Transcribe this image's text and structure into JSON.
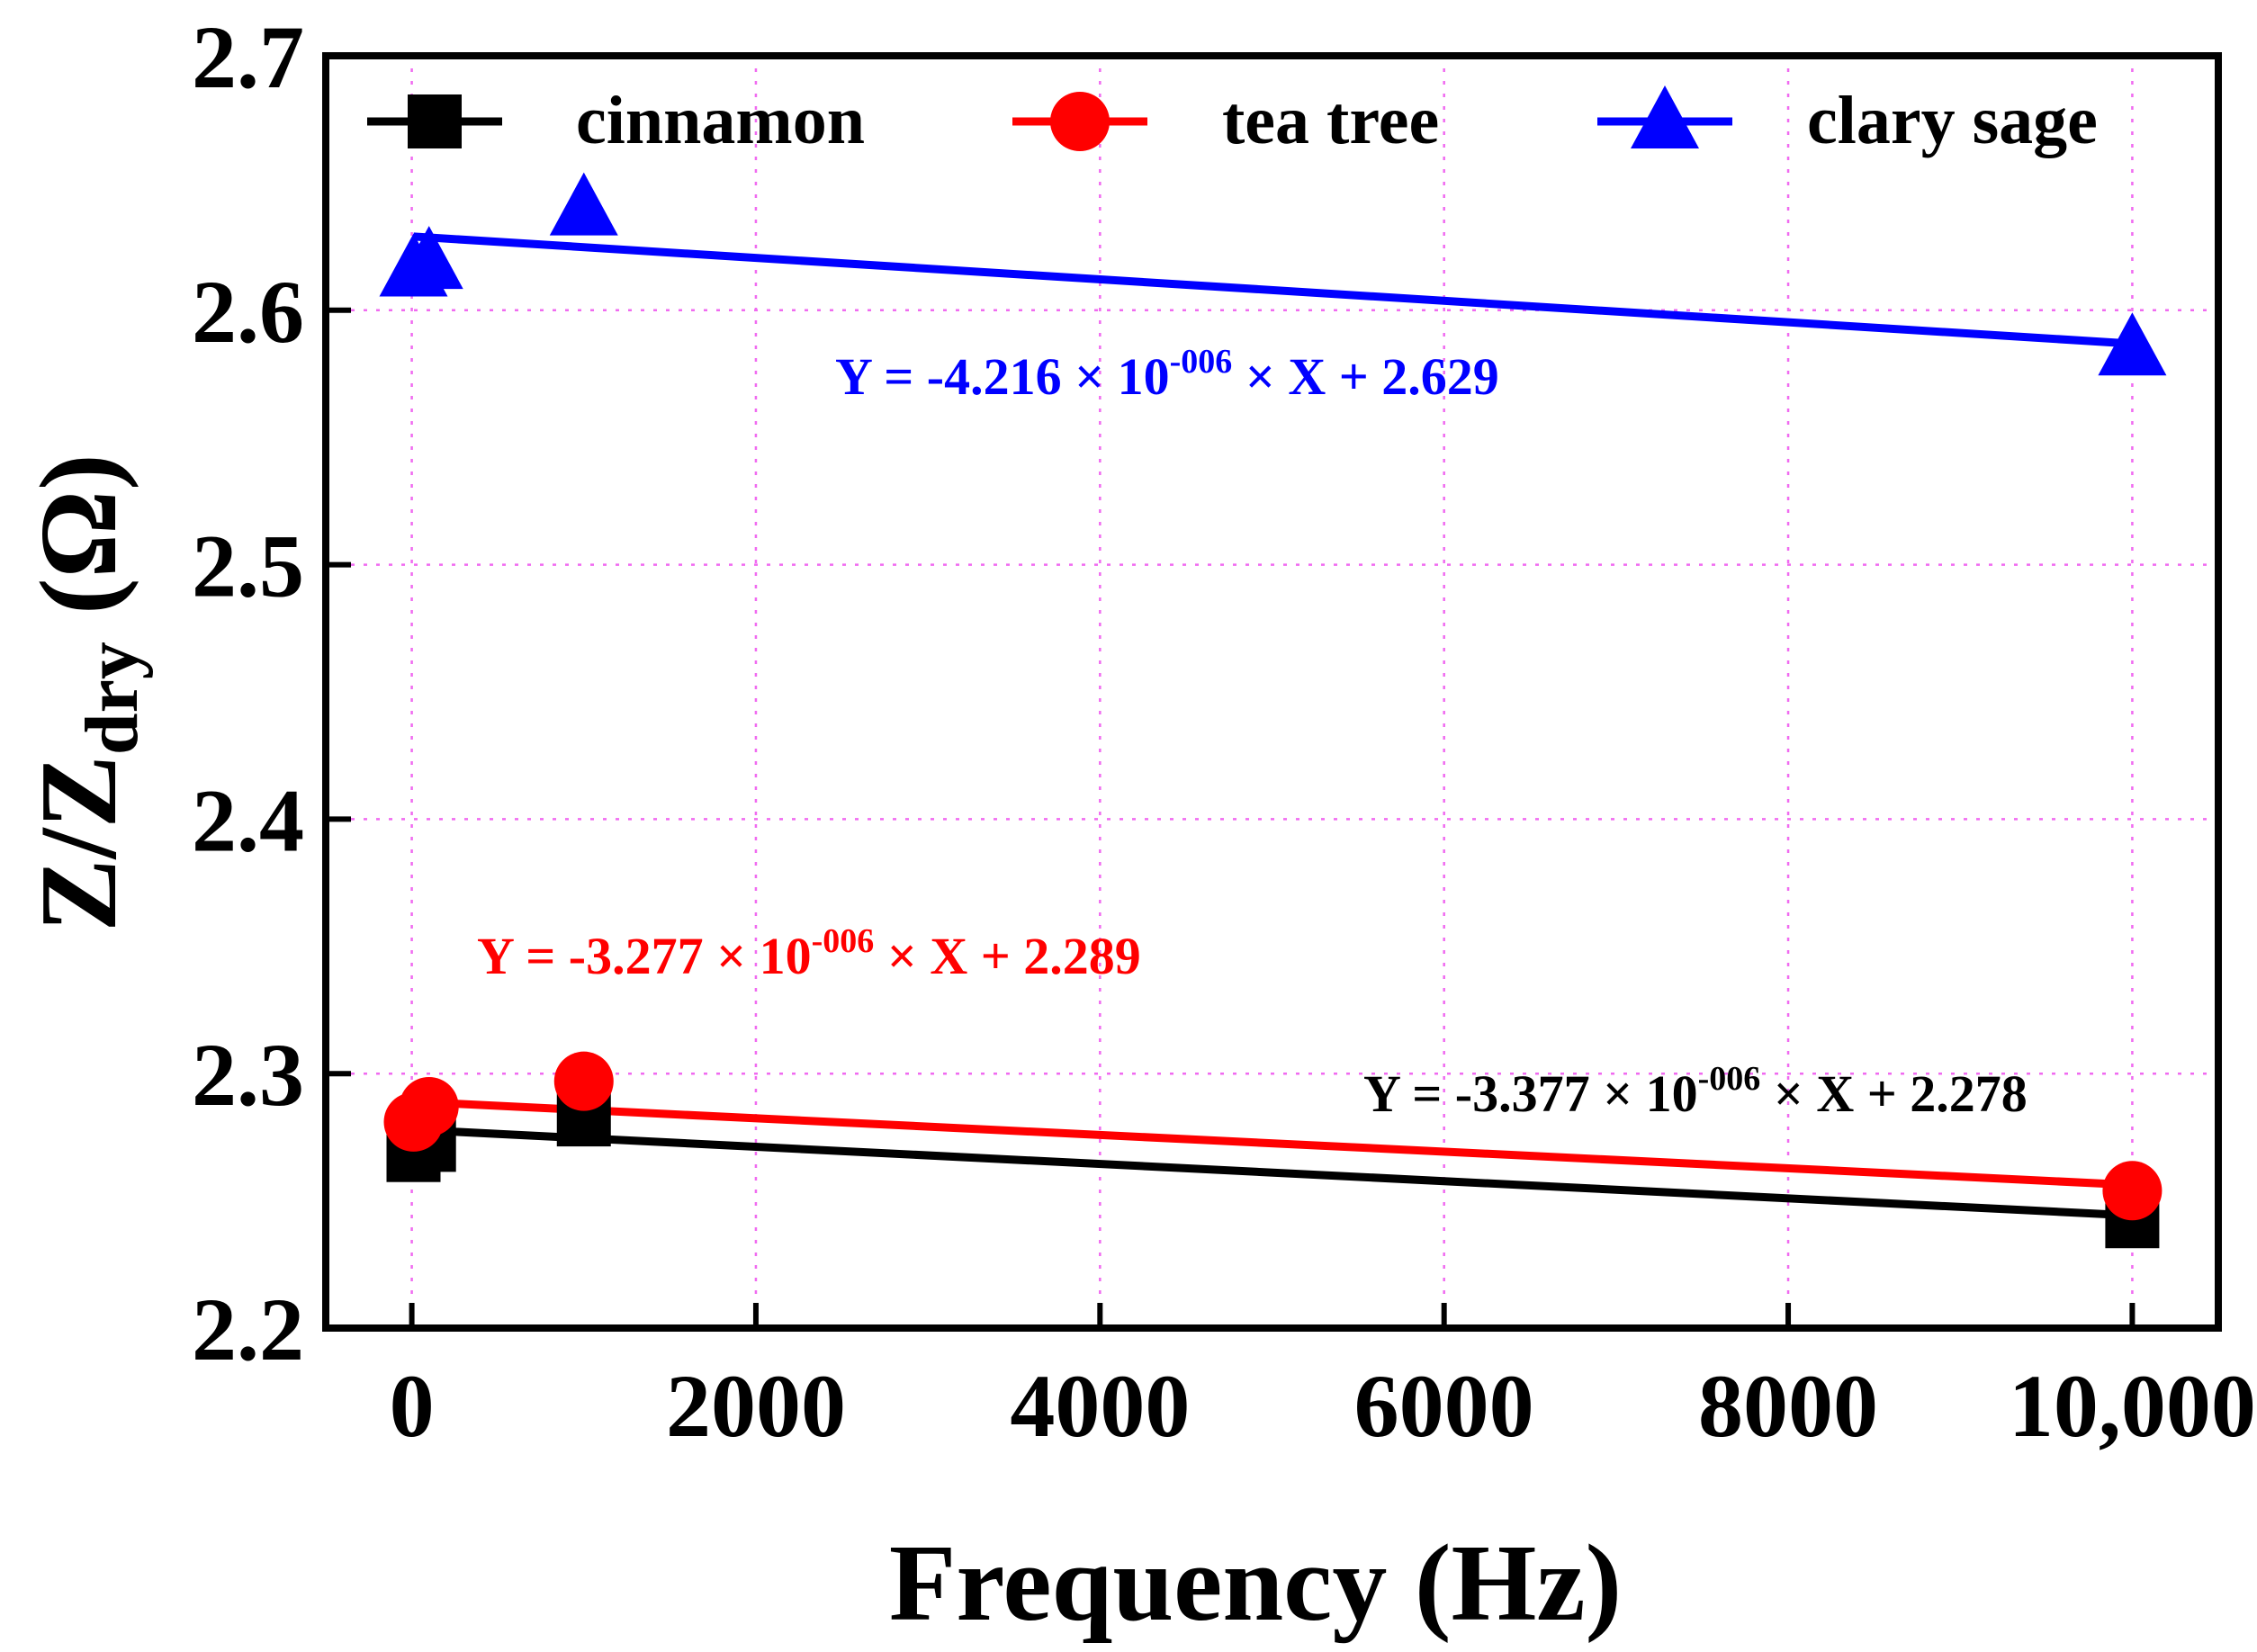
{
  "chart_data": {
    "type": "scatter",
    "title": "",
    "xlabel": "Frequency (Hz)",
    "ylabel": "Z/Zdry (Ω)",
    "ylabel_parts": {
      "main": "Z/Z",
      "sub": "dry",
      "unit": "(Ω)"
    },
    "xlim": [
      -500,
      10500
    ],
    "ylim": [
      2.2,
      2.7
    ],
    "x_ticks": [
      {
        "value": 0,
        "label": "0"
      },
      {
        "value": 2000,
        "label": "2000"
      },
      {
        "value": 4000,
        "label": "4000"
      },
      {
        "value": 6000,
        "label": "6000"
      },
      {
        "value": 8000,
        "label": "8000"
      },
      {
        "value": 10000,
        "label": "10,000"
      }
    ],
    "y_ticks": [
      {
        "value": 2.2,
        "label": "2.2"
      },
      {
        "value": 2.3,
        "label": "2.3"
      },
      {
        "value": 2.4,
        "label": "2.4"
      },
      {
        "value": 2.5,
        "label": "2.5"
      },
      {
        "value": 2.6,
        "label": "2.6"
      },
      {
        "value": 2.7,
        "label": "2.7"
      }
    ],
    "grid": true,
    "legend_position": "top",
    "series": [
      {
        "name": "cinnamon",
        "color": "#000000",
        "marker": "square",
        "x": [
          10,
          100,
          1000,
          10000
        ],
        "y": [
          2.268,
          2.272,
          2.282,
          2.242
        ],
        "fit": {
          "slope": -3.377e-06,
          "intercept": 2.278,
          "equation": {
            "prefix": "Y = -3.377 × 10",
            "exponent": "-006",
            "suffix": " × X + 2.278"
          }
        }
      },
      {
        "name": "tea tree",
        "color": "#ff0000",
        "marker": "circle",
        "x": [
          10,
          100,
          1000,
          10000
        ],
        "y": [
          2.281,
          2.287,
          2.297,
          2.254
        ],
        "fit": {
          "slope": -3.277e-06,
          "intercept": 2.289,
          "equation": {
            "prefix": "Y = -3.277 × 10",
            "exponent": "-006",
            "suffix": " × X + 2.289"
          }
        }
      },
      {
        "name": "clary sage",
        "color": "#0000ff",
        "marker": "triangle",
        "x": [
          10,
          100,
          1000,
          10000
        ],
        "y": [
          2.616,
          2.619,
          2.64,
          2.585
        ],
        "fit": {
          "slope": -4.216e-06,
          "intercept": 2.629,
          "equation": {
            "prefix": "Y = -4.216 × 10",
            "exponent": "-006",
            "suffix": " × X + 2.629"
          }
        }
      }
    ]
  }
}
